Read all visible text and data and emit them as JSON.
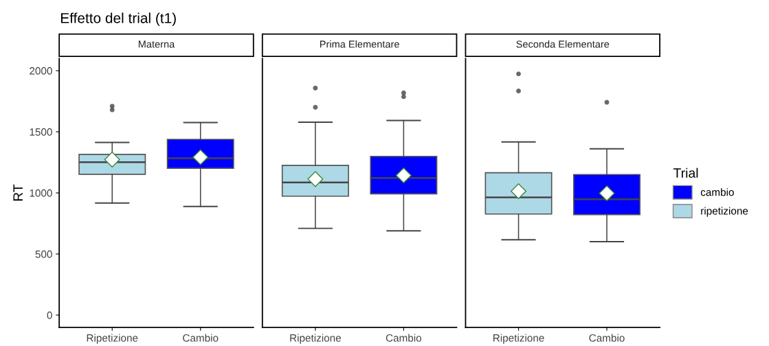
{
  "chart_data": [
    {
      "type": "box",
      "title": "Effetto del trial (t1)",
      "subtitle": "Materna",
      "ylabel": "RT",
      "categories": [
        "Ripetizione",
        "Cambio"
      ],
      "ylim": [
        -100,
        2100
      ],
      "yticks": [
        0,
        500,
        1000,
        1500,
        2000
      ],
      "grid": false,
      "series": [
        {
          "color": "#0000ff",
          "boxes": [
            null,
            {
              "low": 889,
              "q1": 1201,
              "median": 1283,
              "q3": 1438,
              "high": 1576,
              "mean": 1292
            }
          ]
        },
        {
          "color": "#add8e6",
          "boxes": [
            {
              "low": 917,
              "q1": 1152,
              "median": 1251,
              "q3": 1315,
              "high": 1413,
              "mean": 1273,
              "outliers": [
                1710,
                1680
              ]
            },
            null
          ]
        }
      ]
    },
    {
      "type": "box",
      "subtitle": "Prima Elementare",
      "categories": [
        "Ripetizione",
        "Cambio"
      ],
      "ylim": [
        -100,
        2100
      ],
      "tick_labels": "x",
      "grid": false,
      "series": [
        {
          "color": "#0000ff",
          "boxes": [
            null,
            {
              "low": 689,
              "q1": 992,
              "median": 1122,
              "q3": 1298,
              "high": 1593,
              "mean": 1143,
              "outliers": [
                1819,
                1787
              ]
            }
          ]
        },
        {
          "color": "#add8e6",
          "boxes": [
            {
              "low": 710,
              "q1": 973,
              "median": 1085,
              "q3": 1225,
              "high": 1578,
              "mean": 1113,
              "outliers": [
                1858,
                1701
              ]
            },
            null
          ]
        }
      ]
    },
    {
      "type": "box",
      "subtitle": "Seconda Elementare",
      "categories": [
        "Ripetizione",
        "Cambio"
      ],
      "ylim": [
        -100,
        2100
      ],
      "tick_labels": "x",
      "grid": false,
      "legend": "right",
      "legend_title": "Trial",
      "series": [
        {
          "name": "cambio",
          "color": "#0000ff",
          "boxes": [
            null,
            {
              "low": 601,
              "q1": 822,
              "median": 948,
              "q3": 1150,
              "high": 1361,
              "mean": 997,
              "outliers": [
                1741
              ]
            }
          ]
        },
        {
          "name": "ripetizione",
          "color": "#add8e6",
          "boxes": [
            {
              "low": 616,
              "q1": 827,
              "median": 964,
              "q3": 1165,
              "high": 1417,
              "mean": 1014,
              "outliers": [
                1974,
                1834
              ]
            },
            null
          ]
        }
      ]
    }
  ]
}
